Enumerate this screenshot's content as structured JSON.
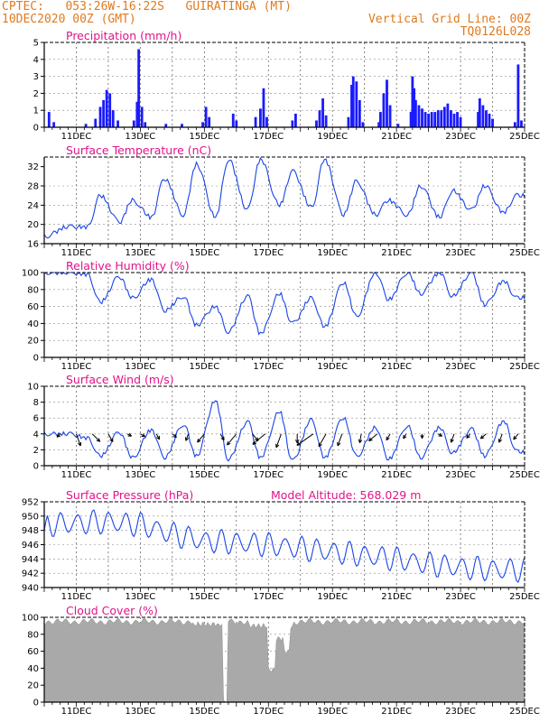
{
  "header": {
    "left_line1": "CPTEC:   053:26W-16:22S   GUIRATINGA (MT)",
    "left_line2": "10DEC2020 00Z (GMT)",
    "right_line1": "Vertical Grid Line: 00Z",
    "right_line2": "TQ0126L028"
  },
  "x_ticks": [
    "11DEC",
    "13DEC",
    "15DEC",
    "17DEC",
    "19DEC",
    "21DEC",
    "23DEC",
    "25DEC"
  ],
  "chart_data": [
    {
      "type": "bar",
      "title": "Precipitation (mm/h)",
      "ylim": [
        0,
        5
      ],
      "yticks": [
        0,
        1,
        2,
        3,
        4,
        5
      ],
      "color": "#1a1aff",
      "events": [
        [
          10.15,
          0.9
        ],
        [
          10.3,
          0.3
        ],
        [
          11.3,
          0.2
        ],
        [
          11.6,
          0.5
        ],
        [
          11.75,
          1.2
        ],
        [
          11.85,
          1.6
        ],
        [
          11.95,
          2.2
        ],
        [
          12.05,
          2.0
        ],
        [
          12.15,
          1.0
        ],
        [
          12.3,
          0.4
        ],
        [
          12.8,
          0.4
        ],
        [
          12.9,
          1.5
        ],
        [
          12.95,
          4.6
        ],
        [
          13.05,
          1.2
        ],
        [
          13.15,
          0.3
        ],
        [
          13.8,
          0.2
        ],
        [
          14.3,
          0.2
        ],
        [
          14.95,
          0.3
        ],
        [
          15.05,
          1.2
        ],
        [
          15.15,
          0.6
        ],
        [
          15.9,
          0.8
        ],
        [
          16.0,
          0.4
        ],
        [
          16.6,
          0.6
        ],
        [
          16.75,
          1.1
        ],
        [
          16.85,
          2.3
        ],
        [
          16.95,
          0.6
        ],
        [
          17.75,
          0.4
        ],
        [
          17.85,
          0.8
        ],
        [
          18.5,
          0.4
        ],
        [
          18.6,
          1.0
        ],
        [
          18.7,
          1.7
        ],
        [
          18.8,
          0.7
        ],
        [
          19.5,
          0.6
        ],
        [
          19.6,
          2.5
        ],
        [
          19.65,
          3.0
        ],
        [
          19.75,
          2.7
        ],
        [
          19.85,
          1.6
        ],
        [
          19.95,
          0.3
        ],
        [
          20.45,
          0.3
        ],
        [
          20.5,
          0.9
        ],
        [
          20.6,
          2.0
        ],
        [
          20.7,
          2.8
        ],
        [
          20.8,
          1.3
        ],
        [
          21.05,
          0.2
        ],
        [
          21.45,
          0.9
        ],
        [
          21.5,
          3.0
        ],
        [
          21.55,
          2.3
        ],
        [
          21.6,
          1.6
        ],
        [
          21.7,
          1.3
        ],
        [
          21.8,
          1.1
        ],
        [
          21.9,
          0.9
        ],
        [
          22.0,
          0.8
        ],
        [
          22.1,
          0.9
        ],
        [
          22.2,
          0.9
        ],
        [
          22.3,
          1.0
        ],
        [
          22.4,
          1.0
        ],
        [
          22.5,
          1.2
        ],
        [
          22.6,
          1.4
        ],
        [
          22.7,
          1.0
        ],
        [
          22.8,
          0.8
        ],
        [
          22.9,
          0.9
        ],
        [
          23.0,
          0.6
        ],
        [
          23.55,
          0.9
        ],
        [
          23.6,
          1.7
        ],
        [
          23.7,
          1.3
        ],
        [
          23.8,
          1.0
        ],
        [
          23.9,
          0.8
        ],
        [
          24.0,
          0.5
        ],
        [
          24.7,
          0.3
        ],
        [
          24.8,
          3.7
        ],
        [
          24.9,
          0.4
        ]
      ]
    },
    {
      "type": "line",
      "title": "Surface Temperature (nC)",
      "ylim": [
        16,
        34
      ],
      "yticks": [
        16,
        20,
        24,
        28,
        32
      ],
      "color": "#1a44e6",
      "day": [
        19.5,
        26.0,
        25.0,
        29.5,
        32.5,
        33.5,
        33.5,
        31.0,
        33.5,
        29.0,
        25.0,
        28.0,
        27.0,
        28.0,
        26.0,
        25.5
      ],
      "night": [
        17.5,
        19.5,
        20.5,
        21.5,
        22.0,
        21.5,
        23.0,
        24.0,
        23.5,
        22.0,
        22.0,
        22.0,
        21.5,
        23.0,
        22.5
      ]
    },
    {
      "type": "line",
      "title": "Relative Humidity (%)",
      "ylim": [
        0,
        100
      ],
      "yticks": [
        0,
        20,
        40,
        60,
        80,
        100
      ],
      "color": "#1a44e6",
      "day": [
        100,
        65,
        70,
        55,
        38,
        30,
        28,
        40,
        36,
        48,
        68,
        75,
        72,
        62,
        70,
        72
      ],
      "night": [
        100,
        98,
        95,
        92,
        72,
        60,
        72,
        75,
        70,
        88,
        100,
        100,
        100,
        100,
        90
      ]
    },
    {
      "type": "line",
      "title": "Surface Wind (m/s)",
      "ylim": [
        0,
        10
      ],
      "yticks": [
        0,
        2,
        4,
        6,
        8,
        10
      ],
      "color": "#1a44e6",
      "day": [
        4.0,
        1.2,
        1.0,
        1.0,
        1.2,
        0.8,
        1.0,
        0.6,
        1.0,
        1.2,
        0.8,
        1.0,
        1.6,
        1.2,
        1.8,
        0.5
      ],
      "night": [
        4.0,
        3.5,
        4.2,
        4.5,
        5.2,
        8.2,
        5.5,
        6.8,
        5.8,
        6.0,
        4.8,
        5.0,
        4.8,
        4.6,
        5.6
      ],
      "vectors": [
        [
          10.5,
          225,
          5
        ],
        [
          11.0,
          290,
          14
        ],
        [
          11.5,
          315,
          12
        ],
        [
          12.0,
          300,
          10
        ],
        [
          12.6,
          330,
          5
        ],
        [
          13.0,
          330,
          6
        ],
        [
          13.5,
          300,
          7
        ],
        [
          14.0,
          320,
          6
        ],
        [
          14.5,
          250,
          8
        ],
        [
          15.0,
          230,
          12
        ],
        [
          15.5,
          300,
          8
        ],
        [
          16.0,
          230,
          16
        ],
        [
          16.5,
          310,
          10
        ],
        [
          16.9,
          220,
          18
        ],
        [
          17.4,
          250,
          16
        ],
        [
          17.9,
          270,
          10
        ],
        [
          18.4,
          215,
          22
        ],
        [
          18.8,
          240,
          16
        ],
        [
          19.3,
          250,
          14
        ],
        [
          19.9,
          260,
          10
        ],
        [
          20.4,
          220,
          12
        ],
        [
          20.8,
          240,
          8
        ],
        [
          21.3,
          240,
          6
        ],
        [
          21.8,
          270,
          5
        ],
        [
          22.3,
          330,
          5
        ],
        [
          22.8,
          250,
          10
        ],
        [
          23.3,
          230,
          6
        ],
        [
          23.8,
          220,
          8
        ],
        [
          24.3,
          250,
          10
        ],
        [
          24.8,
          230,
          8
        ]
      ]
    },
    {
      "type": "line",
      "title": "Surface Pressure (hPa)",
      "subtitle": "Model Altitude: 568.029 m",
      "ylim": [
        940,
        952
      ],
      "yticks": [
        940,
        942,
        944,
        946,
        948,
        950,
        952
      ],
      "color": "#1a44e6",
      "start": 948.0,
      "trend": [
        948.8,
        949.0,
        949.2,
        948.8,
        947.5,
        946.5,
        946.3,
        946.0,
        945.5,
        945.0,
        944.5,
        944.0,
        943.3,
        942.8,
        942.5,
        942.5
      ],
      "amp": 1.6
    },
    {
      "type": "area",
      "title": "Cloud Cover (%)",
      "ylim": [
        0,
        100
      ],
      "yticks": [
        0,
        20,
        40,
        60,
        80,
        100
      ],
      "color": "#a9a9a9",
      "dips": [
        [
          14.7,
          15.7,
          92
        ],
        [
          15.6,
          15.75,
          0
        ],
        [
          16.4,
          17.1,
          90
        ],
        [
          17.0,
          17.25,
          38
        ],
        [
          17.25,
          17.5,
          75
        ],
        [
          17.5,
          17.7,
          60
        ],
        [
          17.7,
          17.8,
          90
        ]
      ]
    }
  ]
}
